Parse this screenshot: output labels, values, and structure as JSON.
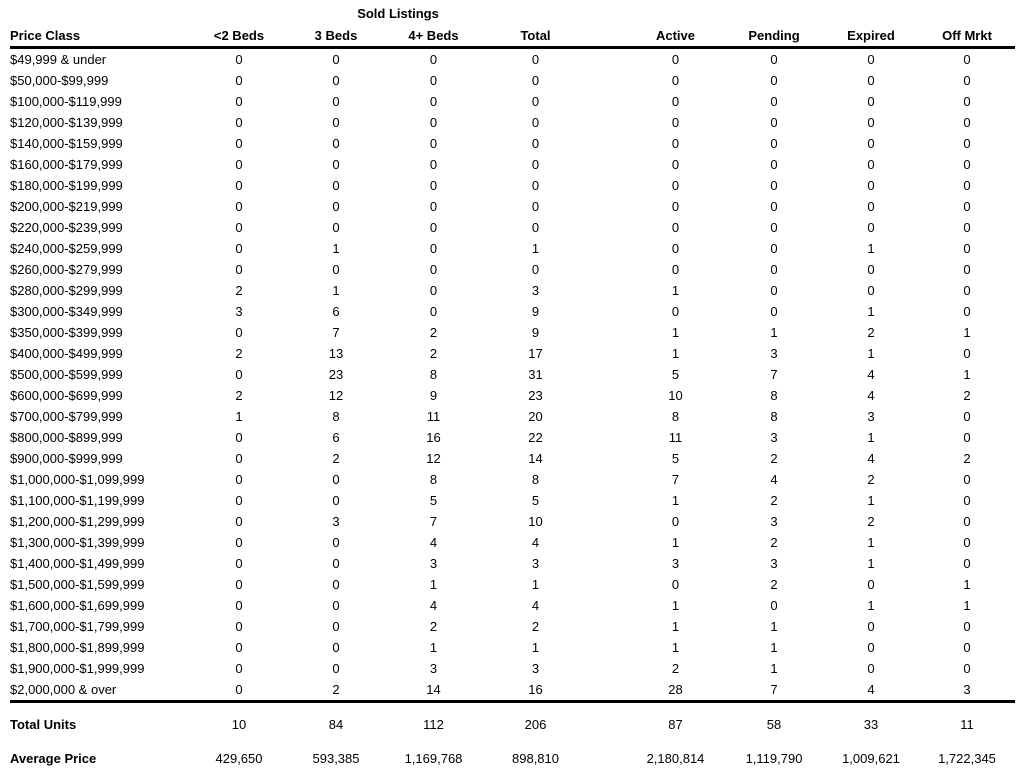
{
  "table": {
    "group_header": "Sold Listings",
    "columns": [
      "Price Class",
      "<2 Beds",
      "3 Beds",
      "4+ Beds",
      "Total",
      "Active",
      "Pending",
      "Expired",
      "Off Mrkt"
    ],
    "rows": [
      {
        "price_class": "$49,999 & under",
        "values": [
          "0",
          "0",
          "0",
          "0",
          "0",
          "0",
          "0",
          "0"
        ]
      },
      {
        "price_class": "$50,000-$99,999",
        "values": [
          "0",
          "0",
          "0",
          "0",
          "0",
          "0",
          "0",
          "0"
        ]
      },
      {
        "price_class": "$100,000-$119,999",
        "values": [
          "0",
          "0",
          "0",
          "0",
          "0",
          "0",
          "0",
          "0"
        ]
      },
      {
        "price_class": "$120,000-$139,999",
        "values": [
          "0",
          "0",
          "0",
          "0",
          "0",
          "0",
          "0",
          "0"
        ]
      },
      {
        "price_class": "$140,000-$159,999",
        "values": [
          "0",
          "0",
          "0",
          "0",
          "0",
          "0",
          "0",
          "0"
        ]
      },
      {
        "price_class": "$160,000-$179,999",
        "values": [
          "0",
          "0",
          "0",
          "0",
          "0",
          "0",
          "0",
          "0"
        ]
      },
      {
        "price_class": "$180,000-$199,999",
        "values": [
          "0",
          "0",
          "0",
          "0",
          "0",
          "0",
          "0",
          "0"
        ]
      },
      {
        "price_class": "$200,000-$219,999",
        "values": [
          "0",
          "0",
          "0",
          "0",
          "0",
          "0",
          "0",
          "0"
        ]
      },
      {
        "price_class": "$220,000-$239,999",
        "values": [
          "0",
          "0",
          "0",
          "0",
          "0",
          "0",
          "0",
          "0"
        ]
      },
      {
        "price_class": "$240,000-$259,999",
        "values": [
          "0",
          "1",
          "0",
          "1",
          "0",
          "0",
          "1",
          "0"
        ]
      },
      {
        "price_class": "$260,000-$279,999",
        "values": [
          "0",
          "0",
          "0",
          "0",
          "0",
          "0",
          "0",
          "0"
        ]
      },
      {
        "price_class": "$280,000-$299,999",
        "values": [
          "2",
          "1",
          "0",
          "3",
          "1",
          "0",
          "0",
          "0"
        ]
      },
      {
        "price_class": "$300,000-$349,999",
        "values": [
          "3",
          "6",
          "0",
          "9",
          "0",
          "0",
          "1",
          "0"
        ]
      },
      {
        "price_class": "$350,000-$399,999",
        "values": [
          "0",
          "7",
          "2",
          "9",
          "1",
          "1",
          "2",
          "1"
        ]
      },
      {
        "price_class": "$400,000-$499,999",
        "values": [
          "2",
          "13",
          "2",
          "17",
          "1",
          "3",
          "1",
          "0"
        ]
      },
      {
        "price_class": "$500,000-$599,999",
        "values": [
          "0",
          "23",
          "8",
          "31",
          "5",
          "7",
          "4",
          "1"
        ]
      },
      {
        "price_class": "$600,000-$699,999",
        "values": [
          "2",
          "12",
          "9",
          "23",
          "10",
          "8",
          "4",
          "2"
        ]
      },
      {
        "price_class": "$700,000-$799,999",
        "values": [
          "1",
          "8",
          "11",
          "20",
          "8",
          "8",
          "3",
          "0"
        ]
      },
      {
        "price_class": "$800,000-$899,999",
        "values": [
          "0",
          "6",
          "16",
          "22",
          "11",
          "3",
          "1",
          "0"
        ]
      },
      {
        "price_class": "$900,000-$999,999",
        "values": [
          "0",
          "2",
          "12",
          "14",
          "5",
          "2",
          "4",
          "2"
        ]
      },
      {
        "price_class": "$1,000,000-$1,099,999",
        "values": [
          "0",
          "0",
          "8",
          "8",
          "7",
          "4",
          "2",
          "0"
        ]
      },
      {
        "price_class": "$1,100,000-$1,199,999",
        "values": [
          "0",
          "0",
          "5",
          "5",
          "1",
          "2",
          "1",
          "0"
        ]
      },
      {
        "price_class": "$1,200,000-$1,299,999",
        "values": [
          "0",
          "3",
          "7",
          "10",
          "0",
          "3",
          "2",
          "0"
        ]
      },
      {
        "price_class": "$1,300,000-$1,399,999",
        "values": [
          "0",
          "0",
          "4",
          "4",
          "1",
          "2",
          "1",
          "0"
        ]
      },
      {
        "price_class": "$1,400,000-$1,499,999",
        "values": [
          "0",
          "0",
          "3",
          "3",
          "3",
          "3",
          "1",
          "0"
        ]
      },
      {
        "price_class": "$1,500,000-$1,599,999",
        "values": [
          "0",
          "0",
          "1",
          "1",
          "0",
          "2",
          "0",
          "1"
        ]
      },
      {
        "price_class": "$1,600,000-$1,699,999",
        "values": [
          "0",
          "0",
          "4",
          "4",
          "1",
          "0",
          "1",
          "1"
        ]
      },
      {
        "price_class": "$1,700,000-$1,799,999",
        "values": [
          "0",
          "0",
          "2",
          "2",
          "1",
          "1",
          "0",
          "0"
        ]
      },
      {
        "price_class": "$1,800,000-$1,899,999",
        "values": [
          "0",
          "0",
          "1",
          "1",
          "1",
          "1",
          "0",
          "0"
        ]
      },
      {
        "price_class": "$1,900,000-$1,999,999",
        "values": [
          "0",
          "0",
          "3",
          "3",
          "2",
          "1",
          "0",
          "0"
        ]
      },
      {
        "price_class": "$2,000,000 & over",
        "values": [
          "0",
          "2",
          "14",
          "16",
          "28",
          "7",
          "4",
          "3"
        ]
      }
    ],
    "summary": {
      "total_units": {
        "label": "Total Units",
        "values": [
          "10",
          "84",
          "112",
          "206",
          "87",
          "58",
          "33",
          "11"
        ]
      },
      "average_price": {
        "label": "Average Price",
        "values": [
          "429,650",
          "593,385",
          "1,169,768",
          "898,810",
          "2,180,814",
          "1,119,790",
          "1,009,621",
          "1,722,345"
        ]
      }
    }
  }
}
